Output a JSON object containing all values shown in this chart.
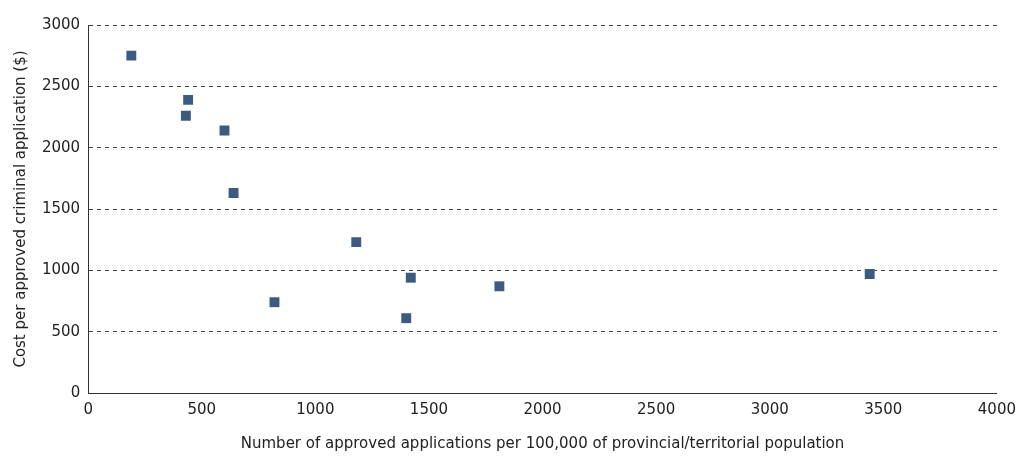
{
  "chart_data": {
    "type": "scatter",
    "xlabel": "Number of approved applications per 100,000 of provincial/territorial population",
    "ylabel": "Cost per approved criminal application ($)",
    "x": [
      190,
      440,
      430,
      600,
      640,
      820,
      1180,
      1420,
      1400,
      1810,
      3440
    ],
    "values": [
      2750,
      2390,
      2260,
      2140,
      1630,
      740,
      1230,
      940,
      610,
      870,
      970
    ],
    "color": "#3d5a80",
    "marker": "square",
    "grid": "y",
    "line_style": "dashed",
    "xlim": [
      0,
      4000
    ],
    "xticks": [
      0,
      500,
      1000,
      1500,
      2000,
      2500,
      3000,
      3500,
      4000
    ],
    "ylim": [
      0,
      3000
    ],
    "yticks": [
      0,
      500,
      1000,
      1500,
      2000,
      2500,
      3000
    ]
  }
}
